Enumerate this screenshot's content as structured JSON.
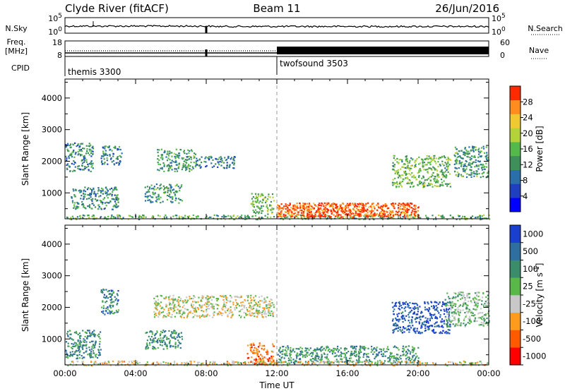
{
  "header": {
    "station": "Clyde River (fitACF)",
    "beam": "Beam 11",
    "date": "26/Jun/2016"
  },
  "top_panels": {
    "nsky_label": "N.Sky",
    "nsky_ticks": [
      "10^5",
      "10^0"
    ],
    "nsearch_label": "N.Search",
    "nsearch_ticks": [
      "10^5",
      "10^0"
    ],
    "freq_label_1": "Freq.",
    "freq_label_2": "[MHz]",
    "freq_ticks": [
      "18",
      "8"
    ],
    "nave_label": "Nave",
    "nave_ticks": [
      "60",
      "0"
    ],
    "cpid_label": "CPID",
    "cpid_segments": [
      {
        "name": "themis 3300",
        "start_hour": 0,
        "end_hour": 12
      },
      {
        "name": "twofsound 3503",
        "start_hour": 12,
        "end_hour": 24
      }
    ]
  },
  "chart_data": [
    {
      "type": "heatmap",
      "title": "",
      "xlabel": "",
      "ylabel": "Slant Range [km]",
      "x_range_hours": [
        0,
        24
      ],
      "y_range_km": [
        180,
        4600
      ],
      "y_ticks": [
        1000,
        2000,
        3000,
        4000
      ],
      "colorbar_label": "Power [dB]",
      "colorbar_ticks": [
        4,
        8,
        12,
        16,
        20,
        24,
        28
      ],
      "colorbar_range": [
        0,
        32
      ],
      "colorbar_colors": [
        "#0000ff",
        "#1f3fbf",
        "#2a6fa8",
        "#3f8f5a",
        "#55b84a",
        "#b4d23a",
        "#f0c832",
        "#ff8c1e",
        "#ff2a00"
      ],
      "scatter_regions": [
        {
          "x": [
            0,
            1.6
          ],
          "y": [
            1700,
            2600
          ],
          "level": 0.35
        },
        {
          "x": [
            2.0,
            3.2
          ],
          "y": [
            1900,
            2500
          ],
          "level": 0.35
        },
        {
          "x": [
            5.2,
            7.4
          ],
          "y": [
            1700,
            2400
          ],
          "level": 0.4
        },
        {
          "x": [
            7.4,
            9.6
          ],
          "y": [
            1800,
            2200
          ],
          "level": 0.3
        },
        {
          "x": [
            0.3,
            3.0
          ],
          "y": [
            500,
            1200
          ],
          "level": 0.35
        },
        {
          "x": [
            4.5,
            6.6
          ],
          "y": [
            700,
            1300
          ],
          "level": 0.4
        },
        {
          "x": [
            10.5,
            11.8
          ],
          "y": [
            350,
            1000
          ],
          "level": 0.5
        },
        {
          "x": [
            18.5,
            21.8
          ],
          "y": [
            1200,
            2200
          ],
          "level": 0.5
        },
        {
          "x": [
            22.0,
            24.0
          ],
          "y": [
            1500,
            2500
          ],
          "level": 0.4
        },
        {
          "x": [
            0,
            24
          ],
          "y": [
            180,
            320
          ],
          "level": 0.45
        },
        {
          "x": [
            12.0,
            20.0
          ],
          "y": [
            250,
            700
          ],
          "level": 0.9
        }
      ]
    },
    {
      "type": "heatmap",
      "title": "",
      "xlabel": "Time UT",
      "ylabel": "Slant Range [km]",
      "x_range_hours": [
        0,
        24
      ],
      "x_ticks": [
        "00:00",
        "04:00",
        "08:00",
        "12:00",
        "16:00",
        "20:00",
        "00:00"
      ],
      "y_range_km": [
        180,
        4600
      ],
      "y_ticks": [
        1000,
        2000,
        3000,
        4000
      ],
      "colorbar_label": "Velocity [m s^-1]",
      "colorbar_ticks": [
        "1000",
        "500",
        "100",
        "25",
        "-25",
        "-100",
        "-500",
        "-1000"
      ],
      "colorbar_colors": [
        "#1a3fcf",
        "#2f6fa0",
        "#3a8c6a",
        "#5ab84a",
        "#c8c8c8",
        "#ff9c1e",
        "#ff5a00",
        "#ff0000"
      ],
      "scatter_regions": [
        {
          "x": [
            0,
            2.0
          ],
          "y": [
            400,
            1300
          ],
          "level": 0.3
        },
        {
          "x": [
            2.0,
            3.0
          ],
          "y": [
            1800,
            2600
          ],
          "level": 0.25
        },
        {
          "x": [
            5.0,
            11.8
          ],
          "y": [
            1700,
            2400
          ],
          "level": 0.55
        },
        {
          "x": [
            4.5,
            6.6
          ],
          "y": [
            700,
            1300
          ],
          "level": 0.3
        },
        {
          "x": [
            10.3,
            11.8
          ],
          "y": [
            200,
            900
          ],
          "level": 0.78
        },
        {
          "x": [
            12.0,
            20.0
          ],
          "y": [
            250,
            800
          ],
          "level": 0.32
        },
        {
          "x": [
            18.5,
            21.8
          ],
          "y": [
            1200,
            2200
          ],
          "level": 0.1
        },
        {
          "x": [
            21.5,
            24.0
          ],
          "y": [
            1400,
            2500
          ],
          "level": 0.45
        },
        {
          "x": [
            0,
            24
          ],
          "y": [
            180,
            320
          ],
          "level": 0.6
        }
      ]
    }
  ]
}
